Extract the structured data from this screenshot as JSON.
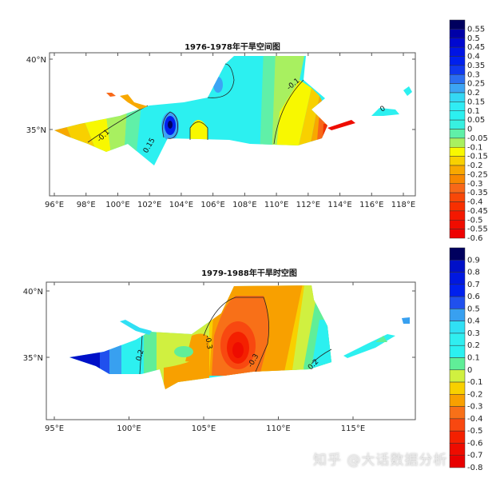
{
  "chart_data": [
    {
      "type": "map",
      "title": "1976-1978年干旱空间图",
      "lat_ticks": [
        "40°N",
        "35°N"
      ],
      "lon_ticks": [
        "96°E",
        "98°E",
        "100°E",
        "102°E",
        "104°E",
        "106°E",
        "108°E",
        "110°E",
        "112°E",
        "114°E",
        "116°E",
        "118°E"
      ],
      "contour_labels": [
        "-0.1",
        "0.15",
        "-0.1",
        "0"
      ],
      "colorbar": {
        "labels": [
          "0.55",
          "0.5",
          "0.45",
          "0.4",
          "0.35",
          "0.3",
          "0.25",
          "0.2",
          "0.15",
          "0.1",
          "0.05",
          "0",
          "-0.05",
          "-0.1",
          "-0.15",
          "-0.2",
          "-0.25",
          "-0.3",
          "-0.35",
          "-0.4",
          "-0.45",
          "-0.5",
          "-0.55",
          "-0.6"
        ],
        "colors": [
          "#00005e",
          "#0000a8",
          "#0008d0",
          "#0014e4",
          "#0020ee",
          "#1038ee",
          "#2c6ef0",
          "#3ca4f4",
          "#34d8f4",
          "#30ecf4",
          "#2cf0f0",
          "#38f0e0",
          "#60f0a8",
          "#a8f060",
          "#f8f800",
          "#f8d000",
          "#f8a800",
          "#f88800",
          "#f86818",
          "#f84808",
          "#f83000",
          "#f41800",
          "#f00c00",
          "#ee0000"
        ]
      }
    },
    {
      "type": "map",
      "title": "1979-1988年干旱时空图",
      "lat_ticks": [
        "40°N",
        "35°N"
      ],
      "lon_ticks": [
        "95°E",
        "100°E",
        "105°E",
        "110°E",
        "115°E"
      ],
      "contour_labels": [
        "0.2",
        "-0.3",
        "-0.3",
        "0.2"
      ],
      "colorbar": {
        "labels": [
          "0.9",
          "0.8",
          "0.7",
          "0.6",
          "0.5",
          "0.4",
          "0.3",
          "0.2",
          "0.1",
          "0",
          "-0.1",
          "-0.2",
          "-0.3",
          "-0.4",
          "-0.5",
          "-0.6",
          "-0.7",
          "-0.8"
        ],
        "colors": [
          "#00005e",
          "#0010c8",
          "#0018e0",
          "#0020ee",
          "#2050ee",
          "#38a0f0",
          "#30e0f4",
          "#30eef0",
          "#2cf0f0",
          "#60ee98",
          "#d0f040",
          "#f8d000",
          "#f8a000",
          "#f87018",
          "#f84810",
          "#f42000",
          "#ee0c00",
          "#e80000"
        ]
      }
    }
  ],
  "watermark": "知乎 @大话数据分析"
}
